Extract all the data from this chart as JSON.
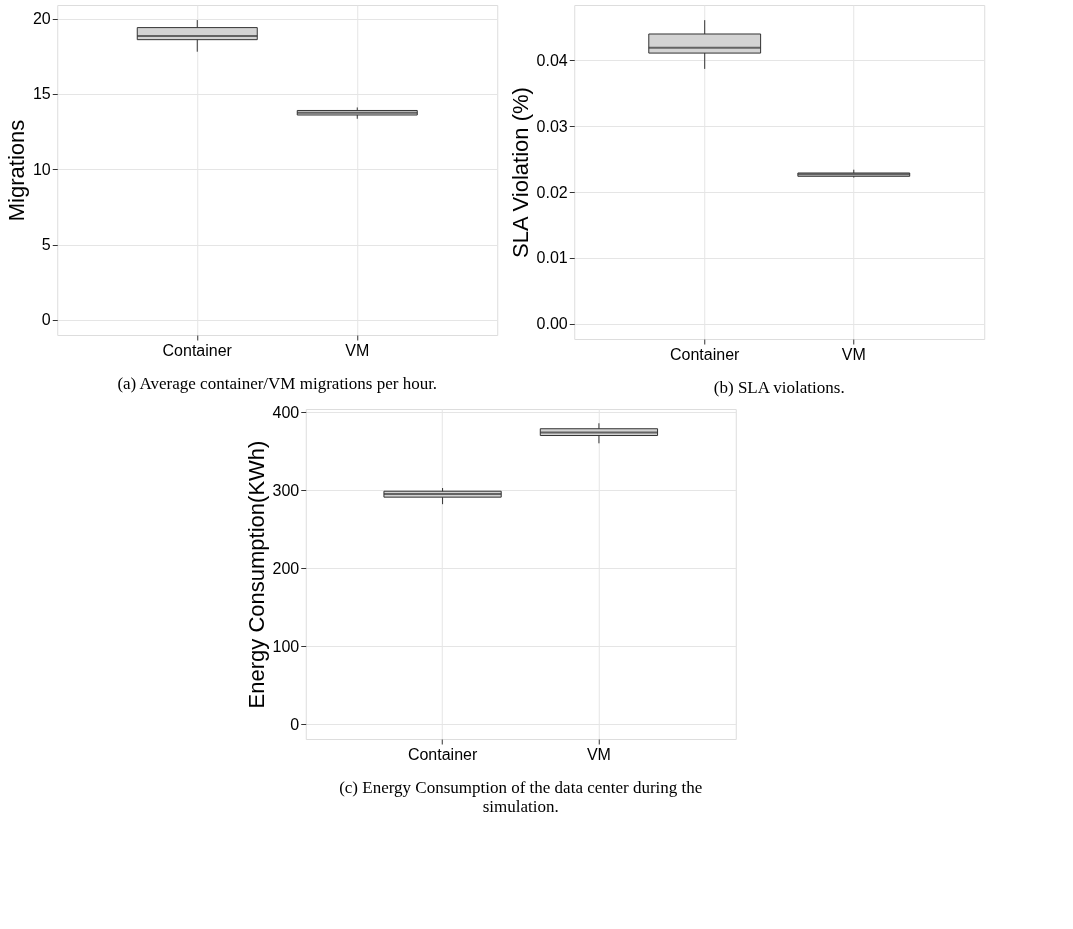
{
  "chart_data": [
    {
      "type": "box",
      "ylabel": "Migrations",
      "categories": [
        "Container",
        "VM"
      ],
      "ylim": [
        -1,
        20.9
      ],
      "yticks": [
        0,
        5,
        10,
        15,
        20
      ],
      "grid": true,
      "series": [
        {
          "color": "#d3d3d3",
          "boxes": [
            {
              "low": 17.8,
              "q1": 18.6,
              "median": 18.85,
              "q3": 19.4,
              "high": 19.9
            },
            {
              "low": 13.35,
              "q1": 13.6,
              "median": 13.75,
              "q3": 13.9,
              "high": 14.1
            }
          ]
        }
      ],
      "annotations": [
        "(a) Average container/VM migrations per hour."
      ]
    },
    {
      "type": "box",
      "ylabel": "SLA Violation (%)",
      "categories": [
        "Container",
        "VM"
      ],
      "ylim": [
        -0.0023,
        0.0484
      ],
      "yticks": [
        {
          "value": 0,
          "label": "0.00"
        },
        0.01,
        0.02,
        0.03,
        0.04
      ],
      "grid": true,
      "series": [
        {
          "color": "#d3d3d3",
          "boxes": [
            {
              "low": 0.0387,
              "q1": 0.0411,
              "median": 0.0419,
              "q3": 0.044,
              "high": 0.0461
            },
            {
              "low": 0.0222,
              "q1": 0.0224,
              "median": 0.0227,
              "q3": 0.0229,
              "high": 0.0234
            }
          ]
        }
      ],
      "annotations": [
        "(b) SLA violations."
      ]
    },
    {
      "type": "box",
      "ylabel": "Energy Consumption(KWh)",
      "categories": [
        "Container",
        "VM"
      ],
      "ylim": [
        -19,
        404
      ],
      "yticks": [
        0,
        100,
        200,
        300,
        400
      ],
      "grid": true,
      "series": [
        {
          "color": "#d3d3d3",
          "boxes": [
            {
              "low": 282,
              "q1": 291,
              "median": 295,
              "q3": 298.6,
              "high": 302.7
            },
            {
              "low": 360,
              "q1": 370,
              "median": 374,
              "q3": 378.7,
              "high": 385.7
            }
          ]
        }
      ],
      "annotations": [
        "(c) Energy Consumption of the data center during the simulation."
      ]
    }
  ]
}
